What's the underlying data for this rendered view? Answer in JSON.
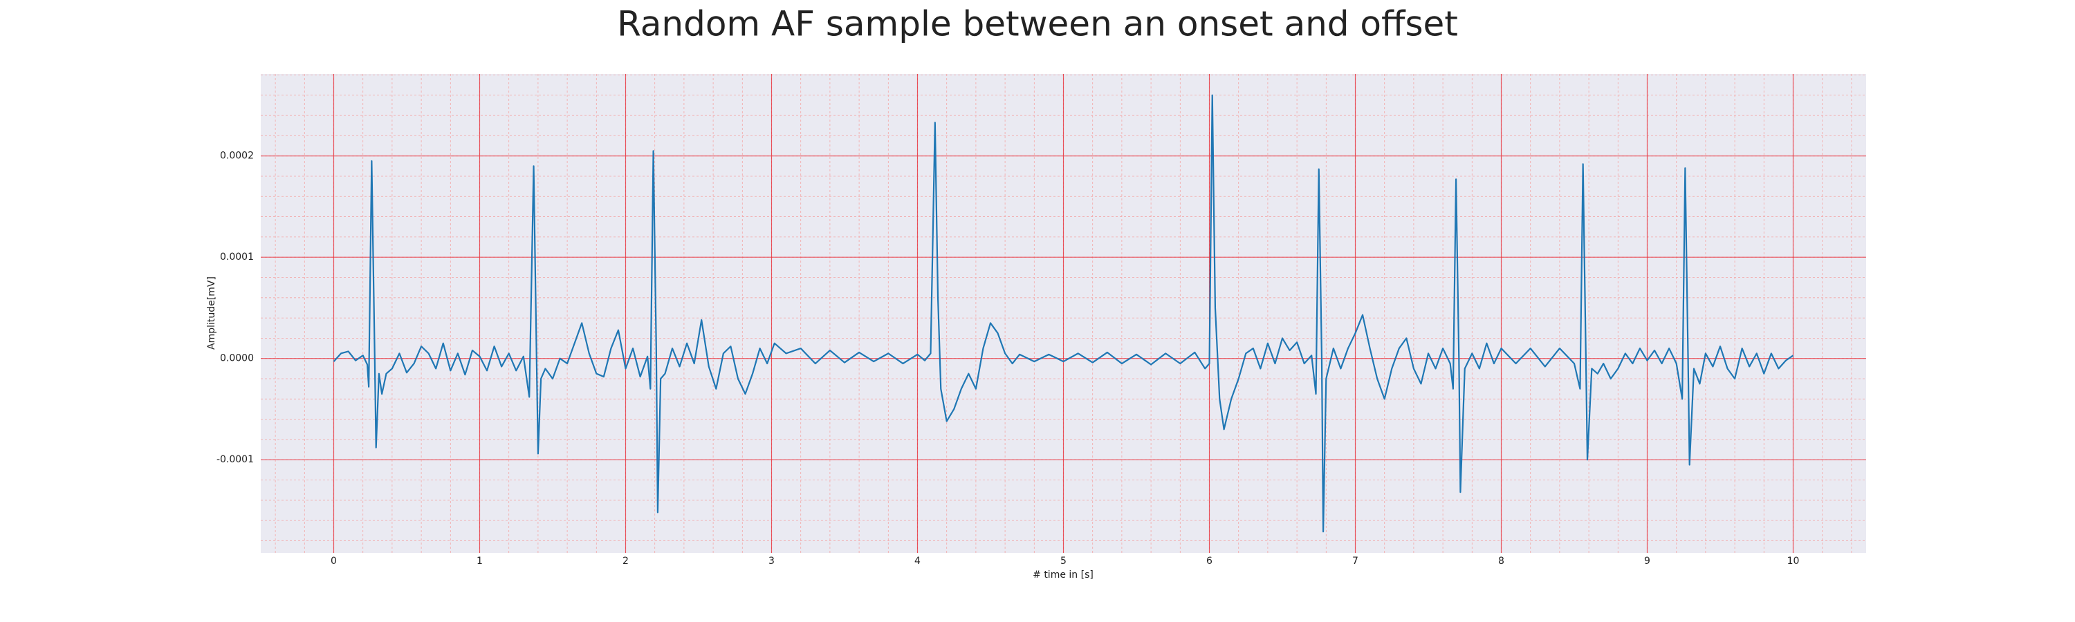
{
  "chart_data": {
    "type": "line",
    "title": "Random AF sample between an onset and offset",
    "xlabel": "# time in [s]",
    "ylabel": "Amplitude[mV]",
    "color": "#1f77b4",
    "grid": true,
    "minor_grid": true,
    "xlim": [
      -0.5,
      10.5
    ],
    "ylim": [
      -0.000192,
      0.000281
    ],
    "xticks": [
      0,
      1,
      2,
      3,
      4,
      5,
      6,
      7,
      8,
      9,
      10
    ],
    "yticks": [
      -0.0001,
      {
        "value": 0,
        "label": "0.0000"
      },
      0.0001,
      0.0002
    ],
    "x": [
      0.0,
      0.05,
      0.1,
      0.15,
      0.2,
      0.23,
      0.24,
      0.26,
      0.28,
      0.29,
      0.31,
      0.33,
      0.36,
      0.4,
      0.45,
      0.5,
      0.55,
      0.6,
      0.65,
      0.7,
      0.75,
      0.8,
      0.85,
      0.9,
      0.95,
      1.0,
      1.05,
      1.1,
      1.15,
      1.2,
      1.25,
      1.3,
      1.34,
      1.37,
      1.39,
      1.4,
      1.42,
      1.45,
      1.5,
      1.55,
      1.6,
      1.65,
      1.7,
      1.75,
      1.8,
      1.85,
      1.9,
      1.95,
      2.0,
      2.05,
      2.1,
      2.15,
      2.17,
      2.19,
      2.21,
      2.22,
      2.24,
      2.27,
      2.32,
      2.37,
      2.42,
      2.47,
      2.52,
      2.57,
      2.62,
      2.67,
      2.72,
      2.77,
      2.82,
      2.87,
      2.92,
      2.97,
      3.02,
      3.1,
      3.2,
      3.3,
      3.4,
      3.5,
      3.6,
      3.7,
      3.8,
      3.9,
      4.0,
      4.05,
      4.09,
      4.12,
      4.14,
      4.16,
      4.2,
      4.25,
      4.3,
      4.35,
      4.4,
      4.45,
      4.5,
      4.55,
      4.6,
      4.65,
      4.7,
      4.8,
      4.9,
      5.0,
      5.1,
      5.2,
      5.3,
      5.4,
      5.5,
      5.6,
      5.7,
      5.8,
      5.9,
      5.97,
      6.0,
      6.02,
      6.04,
      6.07,
      6.1,
      6.15,
      6.2,
      6.25,
      6.3,
      6.35,
      6.4,
      6.45,
      6.5,
      6.55,
      6.6,
      6.65,
      6.7,
      6.73,
      6.75,
      6.77,
      6.78,
      6.8,
      6.85,
      6.9,
      6.95,
      7.0,
      7.05,
      7.1,
      7.15,
      7.2,
      7.25,
      7.3,
      7.35,
      7.4,
      7.45,
      7.5,
      7.55,
      7.6,
      7.65,
      7.67,
      7.69,
      7.71,
      7.72,
      7.75,
      7.8,
      7.85,
      7.9,
      7.95,
      8.0,
      8.1,
      8.2,
      8.3,
      8.4,
      8.5,
      8.54,
      8.56,
      8.58,
      8.59,
      8.62,
      8.66,
      8.7,
      8.75,
      8.8,
      8.85,
      8.9,
      8.95,
      9.0,
      9.05,
      9.1,
      9.15,
      9.2,
      9.24,
      9.26,
      9.28,
      9.29,
      9.32,
      9.36,
      9.4,
      9.45,
      9.5,
      9.55,
      9.6,
      9.65,
      9.7,
      9.75,
      9.8,
      9.85,
      9.9,
      9.95,
      10.0
    ],
    "values": [
      -3e-06,
      5e-06,
      7e-06,
      -2e-06,
      3e-06,
      -6e-06,
      -2.8e-05,
      0.000195,
      1e-05,
      -8.8e-05,
      -1.5e-05,
      -3.5e-05,
      -1.5e-05,
      -1e-05,
      5e-06,
      -1.4e-05,
      -5e-06,
      1.2e-05,
      5e-06,
      -1e-05,
      1.5e-05,
      -1.2e-05,
      5e-06,
      -1.6e-05,
      8e-06,
      2e-06,
      -1.2e-05,
      1.2e-05,
      -8e-06,
      5e-06,
      -1.2e-05,
      2e-06,
      -3.8e-05,
      0.00019,
      0,
      -9.4e-05,
      -2e-05,
      -1e-05,
      -2e-05,
      0,
      -5e-06,
      1.5e-05,
      3.5e-05,
      5e-06,
      -1.5e-05,
      -1.8e-05,
      1e-05,
      2.8e-05,
      -1e-05,
      1e-05,
      -1.8e-05,
      2e-06,
      -3e-05,
      0.000205,
      1e-05,
      -0.000152,
      -2e-05,
      -1.5e-05,
      1e-05,
      -8e-06,
      1.5e-05,
      -5e-06,
      3.8e-05,
      -8e-06,
      -3e-05,
      5e-06,
      1.2e-05,
      -2e-05,
      -3.5e-05,
      -1.5e-05,
      1e-05,
      -5e-06,
      1.5e-05,
      5e-06,
      1e-05,
      -5e-06,
      8e-06,
      -4e-06,
      6e-06,
      -3e-06,
      5e-06,
      -5e-06,
      4e-06,
      -2e-06,
      5e-06,
      0.000233,
      6e-05,
      -3e-05,
      -6.2e-05,
      -5e-05,
      -3e-05,
      -1.5e-05,
      -3e-05,
      1e-05,
      3.5e-05,
      2.5e-05,
      5e-06,
      -5e-06,
      4e-06,
      -3e-06,
      4e-06,
      -3e-06,
      5e-06,
      -4e-06,
      6e-06,
      -5e-06,
      4e-06,
      -6e-06,
      5e-06,
      -5e-06,
      6e-06,
      -1e-05,
      -5e-06,
      0.00026,
      5e-05,
      -4e-05,
      -7e-05,
      -4e-05,
      -2e-05,
      5e-06,
      1e-05,
      -1e-05,
      1.5e-05,
      -5e-06,
      2e-05,
      8e-06,
      1.6e-05,
      -5e-06,
      3e-06,
      -3.5e-05,
      0.000187,
      0,
      -0.000171,
      -2e-05,
      1e-05,
      -1e-05,
      1e-05,
      2.5e-05,
      4.3e-05,
      1e-05,
      -2e-05,
      -4e-05,
      -1e-05,
      1e-05,
      2e-05,
      -1e-05,
      -2.5e-05,
      5e-06,
      -1e-05,
      1e-05,
      -5e-06,
      -3e-05,
      0.000177,
      0,
      -0.000132,
      -1e-05,
      5e-06,
      -1e-05,
      1.5e-05,
      -5e-06,
      1e-05,
      -5e-06,
      1e-05,
      -8e-06,
      1e-05,
      -5e-06,
      -3e-05,
      0.000192,
      0,
      -0.0001,
      -1e-05,
      -1.5e-05,
      -5e-06,
      -2e-05,
      -1e-05,
      5e-06,
      -5e-06,
      1e-05,
      -2e-06,
      8e-06,
      -5e-06,
      1e-05,
      -5e-06,
      -4e-05,
      0.000188,
      0,
      -0.000105,
      -1e-05,
      -2.5e-05,
      5e-06,
      -8e-06,
      1.2e-05,
      -1e-05,
      -2e-05,
      1e-05,
      -8e-06,
      5e-06,
      -1.5e-05,
      5e-06,
      -1e-05,
      -2e-06,
      3e-06
    ]
  }
}
